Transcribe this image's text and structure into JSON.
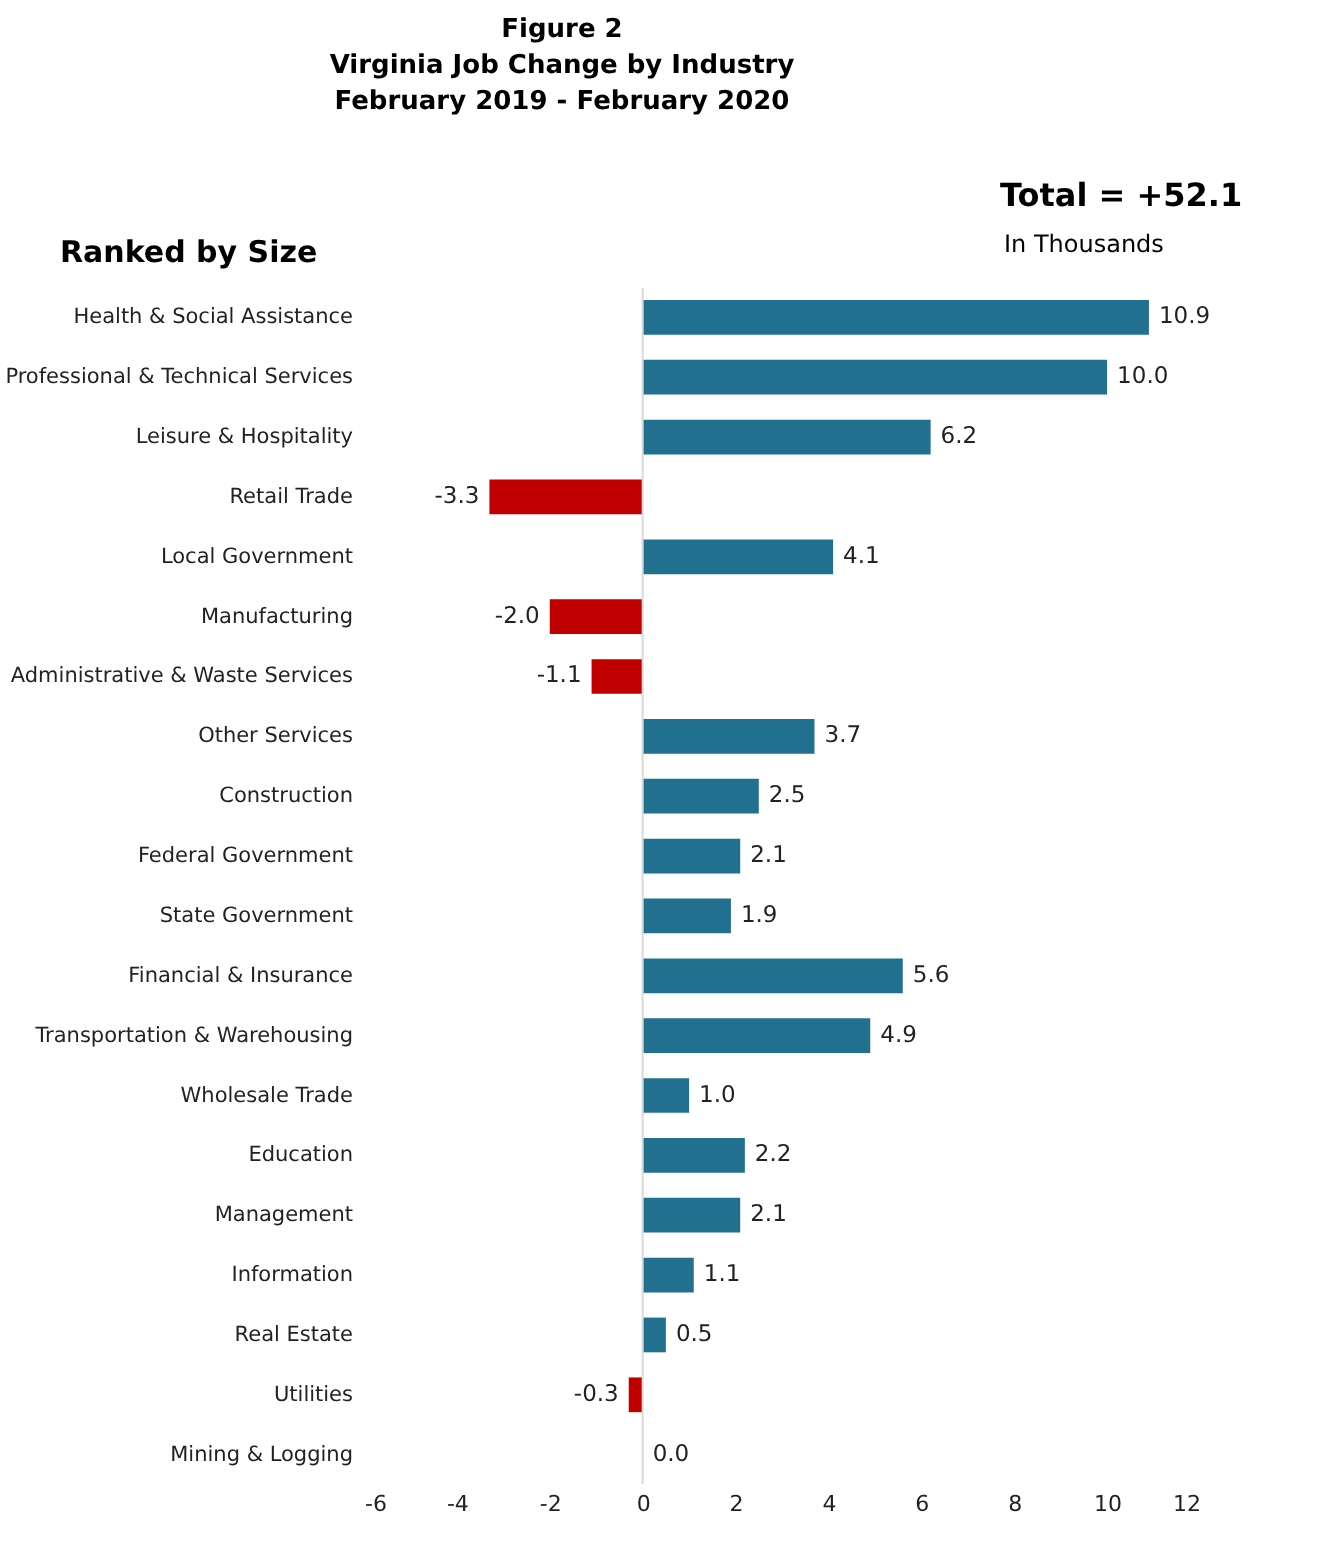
{
  "chart_data": {
    "type": "bar",
    "orientation": "horizontal",
    "title": "Figure 2\nVirginia Job Change by Industry\nFebruary 2019 - February 2020",
    "annotations": [
      "Total = +52.1",
      "In Thousands",
      "Ranked by Size"
    ],
    "categories": [
      "Health & Social Assistance",
      "Professional & Technical Services",
      "Leisure & Hospitality",
      "Retail Trade",
      "Local Government",
      "Manufacturing",
      "Administrative & Waste Services",
      "Other Services",
      "Construction",
      "Federal Government",
      "State Government",
      "Financial & Insurance",
      "Transportation & Warehousing",
      "Wholesale Trade",
      "Education",
      "Management",
      "Information",
      "Real Estate",
      "Utilities",
      "Mining & Logging"
    ],
    "values": [
      10.9,
      10.0,
      6.2,
      -3.3,
      4.1,
      -2.0,
      -1.1,
      3.7,
      2.5,
      2.1,
      1.9,
      5.6,
      4.9,
      1.0,
      2.2,
      2.1,
      1.1,
      0.5,
      -0.3,
      0.0
    ],
    "value_labels": [
      "10.9",
      "10.0",
      "6.2",
      "-3.3",
      "4.1",
      "-2.0",
      "-1.1",
      "3.7",
      "2.5",
      "2.1",
      "1.9",
      "5.6",
      "4.9",
      "1.0",
      "2.2",
      "2.1",
      "1.1",
      "0.5",
      "-0.3",
      "0.0"
    ],
    "colors": [
      "#21708f",
      "#21708f",
      "#21708f",
      "#c00000",
      "#21708f",
      "#c00000",
      "#c00000",
      "#21708f",
      "#21708f",
      "#21708f",
      "#21708f",
      "#21708f",
      "#21708f",
      "#21708f",
      "#21708f",
      "#21708f",
      "#21708f",
      "#21708f",
      "#c00000",
      "#21708f"
    ],
    "xlim": [
      -6,
      12
    ],
    "xticks": [
      -6,
      -4,
      -2,
      0,
      2,
      4,
      6,
      8,
      10,
      12
    ],
    "ref_lines": [
      {
        "axis": "x",
        "value": 0,
        "color": "#d9d9d9"
      }
    ],
    "grid": false
  }
}
